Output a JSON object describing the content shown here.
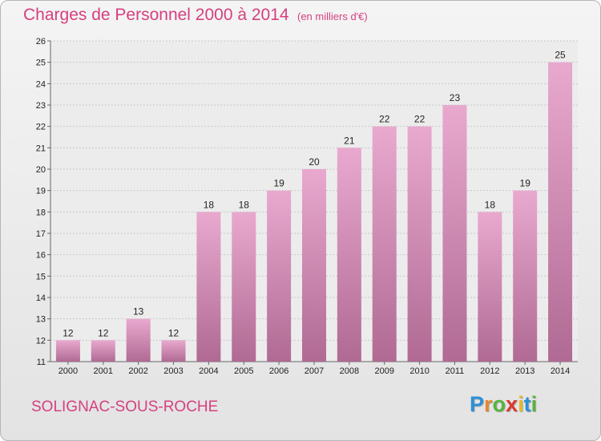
{
  "header": {
    "title": "Charges de Personnel 2000 à 2014",
    "subtitle": "(en milliers d'€)"
  },
  "footer": {
    "commune": "SOLIGNAC-SOUS-ROCHE",
    "logo_letters": [
      {
        "char": "P",
        "color": "#2e8fd6"
      },
      {
        "char": "r",
        "color": "#e8872a"
      },
      {
        "char": "o",
        "color": "#57b33c"
      },
      {
        "char": "x",
        "color": "#d93b2e"
      },
      {
        "char": "i",
        "color": "#e8b92a"
      },
      {
        "char": "t",
        "color": "#2e8fd6"
      },
      {
        "char": "i",
        "color": "#57b33c"
      }
    ]
  },
  "colors": {
    "title": "#d5407e",
    "bar_top": "#e9a9cf",
    "bar_bottom": "#b06a93",
    "grid": "#c9c9c9",
    "axis": "#666666"
  },
  "chart_data": {
    "type": "bar",
    "categories": [
      "2000",
      "2001",
      "2002",
      "2003",
      "2004",
      "2005",
      "2006",
      "2007",
      "2008",
      "2009",
      "2010",
      "2011",
      "2012",
      "2013",
      "2014"
    ],
    "values": [
      12,
      12,
      13,
      12,
      18,
      18,
      19,
      20,
      21,
      22,
      22,
      23,
      18,
      19,
      25
    ],
    "ylim": [
      11,
      26
    ],
    "yticks": [
      11,
      12,
      13,
      14,
      15,
      16,
      17,
      18,
      19,
      20,
      21,
      22,
      23,
      24,
      25,
      26
    ],
    "grid": true,
    "data_labels": true
  }
}
